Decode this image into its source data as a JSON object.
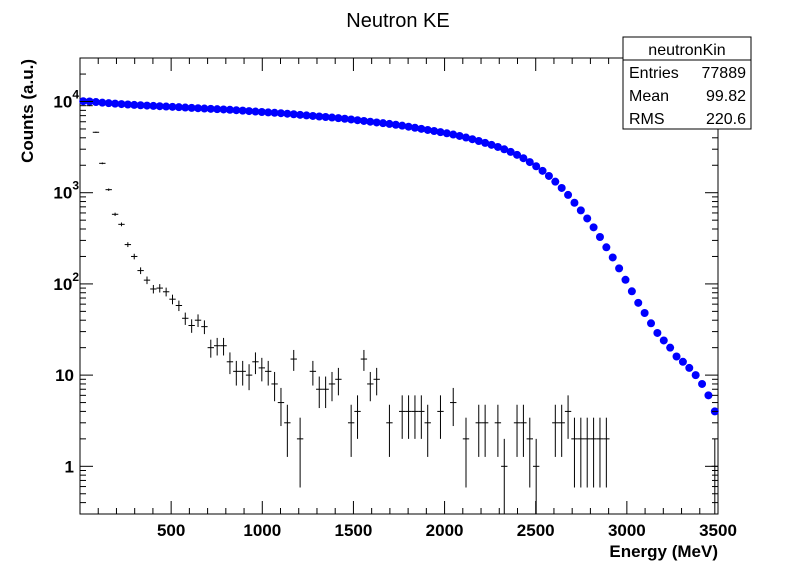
{
  "chart_data": {
    "type": "scatter",
    "title": "Neutron KE",
    "xlabel": "Energy (MeV)",
    "ylabel": "Counts (a.u.)",
    "xlim": [
      0,
      3500
    ],
    "ylim": [
      0.3,
      30000
    ],
    "yscale": "log",
    "grid": false,
    "x_ticks": [
      {
        "value": 500,
        "label": "500"
      },
      {
        "value": 1000,
        "label": "1000"
      },
      {
        "value": 1500,
        "label": "1500"
      },
      {
        "value": 2000,
        "label": "2000"
      },
      {
        "value": 2500,
        "label": "2500"
      },
      {
        "value": 3000,
        "label": "3000"
      },
      {
        "value": 3500,
        "label": "3500"
      }
    ],
    "y_ticks": [
      {
        "value": 1,
        "base": "1",
        "exp": ""
      },
      {
        "value": 10,
        "base": "10",
        "exp": ""
      },
      {
        "value": 100,
        "base": "10",
        "exp": "2"
      },
      {
        "value": 1000,
        "base": "10",
        "exp": "3"
      },
      {
        "value": 10000,
        "base": "10",
        "exp": "4"
      }
    ],
    "stats_box": {
      "name": "neutronKin",
      "rows": [
        {
          "label": "Entries",
          "value": "77889"
        },
        {
          "label": "Mean",
          "value": "99.82"
        },
        {
          "label": "RMS",
          "value": "220.6"
        }
      ]
    },
    "series": [
      {
        "style": "markers",
        "color": "#0000ff",
        "x": [
          17.5,
          52.5,
          87.5,
          122.5,
          157.5,
          192.5,
          227.5,
          262.5,
          297.5,
          332.5,
          367.5,
          402.5,
          437.5,
          472.5,
          507.5,
          542.5,
          577.5,
          612.5,
          647.5,
          682.5,
          717.5,
          752.5,
          787.5,
          822.5,
          857.5,
          892.5,
          927.5,
          962.5,
          997.5,
          1032.5,
          1067.5,
          1102.5,
          1137.5,
          1172.5,
          1207.5,
          1242.5,
          1277.5,
          1312.5,
          1347.5,
          1382.5,
          1417.5,
          1452.5,
          1487.5,
          1522.5,
          1557.5,
          1592.5,
          1627.5,
          1662.5,
          1697.5,
          1732.5,
          1767.5,
          1802.5,
          1837.5,
          1872.5,
          1907.5,
          1942.5,
          1977.5,
          2012.5,
          2047.5,
          2082.5,
          2117.5,
          2152.5,
          2187.5,
          2222.5,
          2257.5,
          2292.5,
          2327.5,
          2362.5,
          2397.5,
          2432.5,
          2467.5,
          2502.5,
          2537.5,
          2572.5,
          2607.5,
          2642.5,
          2677.5,
          2712.5,
          2747.5,
          2782.5,
          2817.5,
          2852.5,
          2887.5,
          2922.5,
          2957.5,
          2992.5,
          3027.5,
          3062.5,
          3097.5,
          3132.5,
          3167.5,
          3202.5,
          3237.5,
          3272.5,
          3307.5,
          3342.5,
          3377.5,
          3412.5,
          3447.5,
          3482.5
        ],
        "y": [
          10081,
          10000,
          9863,
          9719,
          9592,
          9478,
          9372,
          9274,
          9182,
          9098,
          9020,
          8948,
          8880,
          8813,
          8742,
          8666,
          8589,
          8515,
          8444,
          8375,
          8308,
          8244,
          8181,
          8112,
          8033,
          7946,
          7854,
          7762,
          7676,
          7597,
          7521,
          7440,
          7349,
          7250,
          7145,
          7041,
          6943,
          6851,
          6763,
          6673,
          6577,
          6472,
          6358,
          6239,
          6119,
          6004,
          5894,
          5788,
          5679,
          5561,
          5433,
          5296,
          5155,
          5014,
          4878,
          4748,
          4618,
          4484,
          4342,
          4190,
          4029,
          3861,
          3690,
          3519,
          3349,
          3175,
          2995,
          2805,
          2603,
          2390,
          2166,
          1950,
          1737,
          1526,
          1321,
          1127,
          946,
          776,
          640,
          522,
          417,
          327,
          252,
          195,
          148,
          111,
          83,
          62,
          48,
          37,
          29,
          24,
          20,
          16,
          14,
          12,
          10,
          8,
          6,
          4
        ]
      },
      {
        "style": "error-crosses",
        "color": "#000000",
        "x": [
          17.5,
          52.5,
          87.5,
          122.5,
          157.5,
          192.5,
          227.5,
          262.5,
          297.5,
          332.5,
          367.5,
          402.5,
          437.5,
          472.5,
          507.5,
          542.5,
          577.5,
          612.5,
          647.5,
          682.5,
          717.5,
          752.5,
          787.5,
          822.5,
          857.5,
          892.5,
          927.5,
          962.5,
          997.5,
          1032.5,
          1067.5,
          1102.5,
          1137.5,
          1172.5,
          1207.5,
          1242.5,
          1277.5,
          1312.5,
          1347.5,
          1382.5,
          1417.5,
          1452.5,
          1487.5,
          1522.5,
          1557.5,
          1592.5,
          1627.5,
          1662.5,
          1697.5,
          1732.5,
          1767.5,
          1802.5,
          1837.5,
          1872.5,
          1907.5,
          1942.5,
          1977.5,
          2012.5,
          2047.5,
          2082.5,
          2117.5,
          2152.5,
          2187.5,
          2222.5,
          2257.5,
          2292.5,
          2327.5,
          2362.5,
          2397.5,
          2432.5,
          2467.5,
          2502.5,
          2537.5,
          2572.5,
          2607.5,
          2642.5,
          2677.5,
          2712.5,
          2747.5,
          2782.5,
          2817.5,
          2852.5,
          2887.5,
          2922.5,
          2957.5,
          2992.5,
          3027.5,
          3062.5,
          3097.5,
          3132.5,
          3167.5,
          3202.5,
          3237.5,
          3272.5,
          3307.5,
          3342.5,
          3377.5,
          3412.5,
          3447.5,
          3482.5
        ],
        "y": [
          10000,
          9000,
          4600,
          2100,
          1080,
          580,
          450,
          270,
          200,
          140,
          110,
          88,
          90,
          82,
          68,
          58,
          42,
          35,
          40,
          34,
          20,
          21,
          21,
          14,
          11,
          11,
          10,
          14,
          12,
          11,
          8,
          5,
          3,
          15,
          2,
          0,
          11,
          7,
          7,
          8,
          9,
          0,
          3,
          4,
          15,
          8,
          9,
          0,
          3,
          0,
          4,
          4,
          4,
          4,
          3,
          0,
          4,
          0,
          5,
          0,
          2,
          0,
          3,
          3,
          0,
          3,
          1,
          0,
          3,
          3,
          2,
          1,
          0,
          0,
          3,
          3,
          4,
          2,
          2,
          2,
          2,
          2,
          2,
          0,
          0,
          0,
          0,
          0,
          0,
          0,
          0,
          0,
          0,
          0,
          0,
          0,
          0,
          0,
          0,
          1
        ]
      }
    ]
  }
}
